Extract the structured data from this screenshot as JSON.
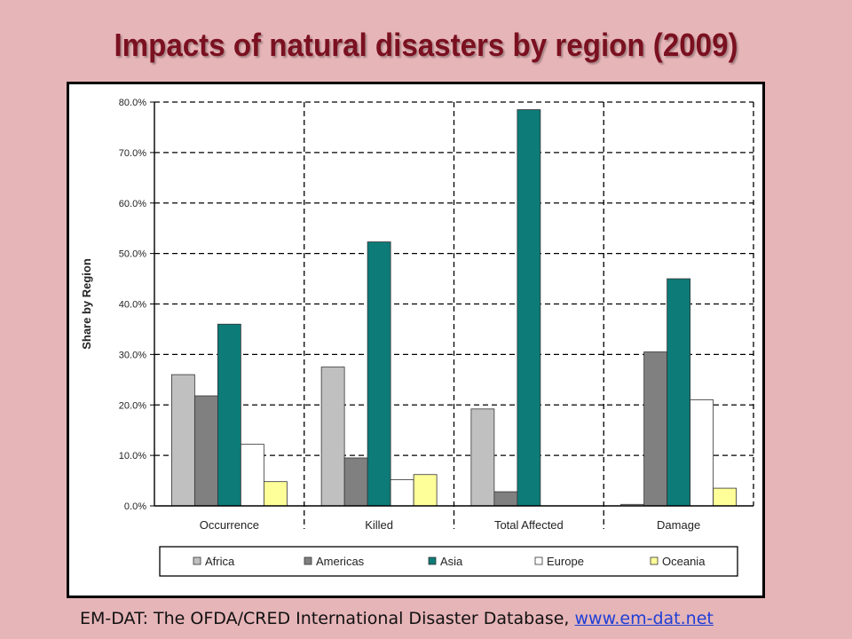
{
  "slide": {
    "title": "Impacts of natural disasters by region (2009)",
    "source_text": "EM-DAT: The OFDA/CRED International Disaster Database, ",
    "source_link": "www.em-dat.net"
  },
  "chart_data": {
    "type": "bar",
    "title": "",
    "xlabel": "",
    "ylabel": "Share by Region",
    "ylim": [
      0,
      80
    ],
    "y_ticks": [
      "0.0%",
      "10.0%",
      "20.0%",
      "30.0%",
      "40.0%",
      "50.0%",
      "60.0%",
      "70.0%",
      "80.0%"
    ],
    "categories": [
      "Occurrence",
      "Killed",
      "Total Affected",
      "Damage"
    ],
    "series": [
      {
        "name": "Africa",
        "color": "#c0c0c0",
        "values": [
          26.0,
          27.5,
          19.2,
          0.3
        ]
      },
      {
        "name": "Americas",
        "color": "#808080",
        "values": [
          21.8,
          9.5,
          2.8,
          30.5
        ]
      },
      {
        "name": "Asia",
        "color": "#0d7b78",
        "values": [
          36.0,
          52.3,
          78.5,
          45.0
        ]
      },
      {
        "name": "Europe",
        "color": "#ffffff",
        "values": [
          12.2,
          5.2,
          0.0,
          21.0
        ]
      },
      {
        "name": "Oceania",
        "color": "#ffff99",
        "values": [
          4.8,
          6.2,
          0.0,
          3.5
        ]
      }
    ],
    "grid": true,
    "legend_position": "bottom"
  }
}
